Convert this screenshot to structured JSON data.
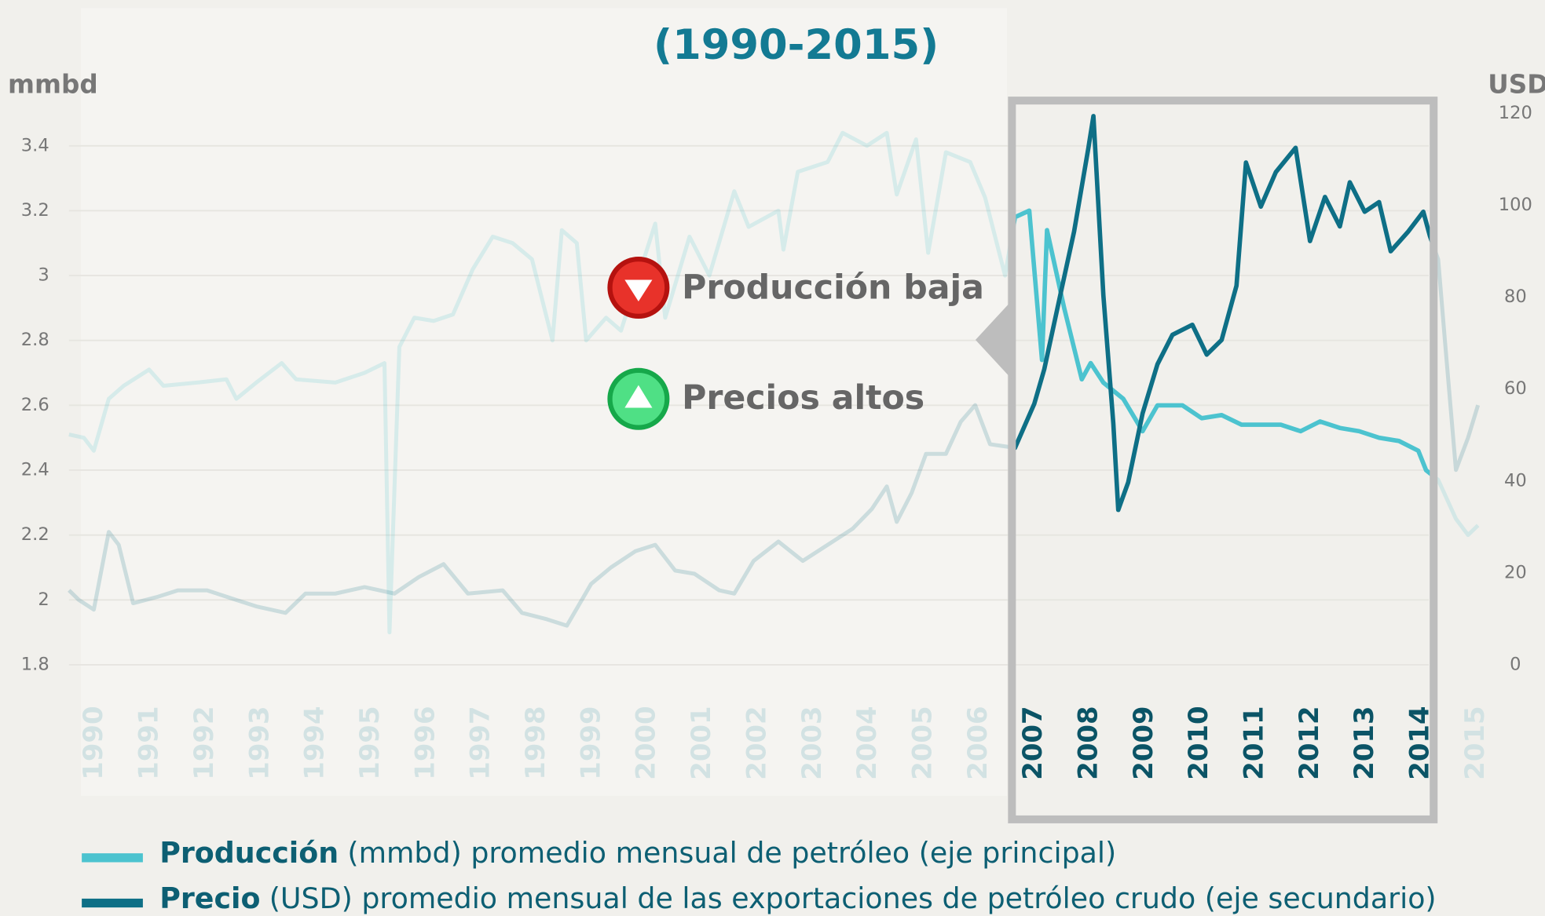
{
  "chart_data": {
    "type": "line",
    "title": "(1990-2015)",
    "y_label": "mmbd",
    "y2_label": "USD",
    "xlim": [
      1990.05,
      2015.55
    ],
    "xticks": [
      {
        "value": 1990.5,
        "label": "1990"
      },
      {
        "value": 1991.5,
        "label": "1991"
      },
      {
        "value": 1992.5,
        "label": "1992"
      },
      {
        "value": 1993.5,
        "label": "1993"
      },
      {
        "value": 1994.5,
        "label": "1994"
      },
      {
        "value": 1995.5,
        "label": "1995"
      },
      {
        "value": 1996.5,
        "label": "1996"
      },
      {
        "value": 1997.5,
        "label": "1997"
      },
      {
        "value": 1998.5,
        "label": "1998"
      },
      {
        "value": 1999.5,
        "label": "1999"
      },
      {
        "value": 2000.5,
        "label": "2000"
      },
      {
        "value": 2001.5,
        "label": "2001"
      },
      {
        "value": 2002.5,
        "label": "2002"
      },
      {
        "value": 2003.5,
        "label": "2003"
      },
      {
        "value": 2004.5,
        "label": "2004"
      },
      {
        "value": 2005.5,
        "label": "2005"
      },
      {
        "value": 2006.5,
        "label": "2006"
      },
      {
        "value": 2007.5,
        "label": "2007"
      },
      {
        "value": 2008.5,
        "label": "2008"
      },
      {
        "value": 2009.5,
        "label": "2009"
      },
      {
        "value": 2010.5,
        "label": "2010"
      },
      {
        "value": 2011.5,
        "label": "2011"
      },
      {
        "value": 2012.5,
        "label": "2012"
      },
      {
        "value": 2013.5,
        "label": "2013"
      },
      {
        "value": 2014.5,
        "label": "2014"
      },
      {
        "value": 2015.5,
        "label": "2015"
      }
    ],
    "ylim": [
      1.8,
      3.5
    ],
    "yticks": [
      1.8,
      2.0,
      2.2,
      2.4,
      2.6,
      2.8,
      3.0,
      3.2,
      3.4
    ],
    "y2lim": [
      0,
      120
    ],
    "y2ticks": [
      0,
      20,
      40,
      60,
      80,
      100,
      120
    ],
    "grid": true,
    "highlight": [
      2007.1,
      2014.7
    ],
    "annotations": [
      "Producción baja",
      "Precios altos"
    ],
    "series": [
      {
        "name": "Producción",
        "legend_text": "(mmbd) promedio mensual de petróleo (eje principal)",
        "color": "#4cc3cf",
        "axis": "y",
        "x": [
          1990.05,
          1990.32,
          1990.5,
          1990.77,
          1991.04,
          1991.5,
          1991.76,
          1992.37,
          1992.9,
          1993.08,
          1993.44,
          1993.9,
          1994.16,
          1994.87,
          1995.4,
          1995.76,
          1995.85,
          1996.03,
          1996.3,
          1996.65,
          1997,
          1997.36,
          1997.72,
          1998.08,
          1998.43,
          1998.8,
          1998.97,
          1999.24,
          1999.41,
          1999.77,
          2000.04,
          2000.66,
          2000.84,
          2001.28,
          2001.64,
          2002.09,
          2002.35,
          2002.89,
          2002.98,
          2003.24,
          2003.78,
          2004.05,
          2004.49,
          2004.85,
          2005.03,
          2005.38,
          2005.6,
          2005.92,
          2006.36,
          2006.63,
          2006.99,
          2007.17,
          2007.43,
          2007.66,
          2007.75,
          2008.06,
          2008.38,
          2008.54,
          2008.77,
          2009.13,
          2009.48,
          2009.75,
          2010.2,
          2010.55,
          2010.91,
          2011.27,
          2011.62,
          2011.98,
          2012.34,
          2012.69,
          2013.05,
          2013.4,
          2013.76,
          2014.12,
          2014.47,
          2014.61,
          2014.83,
          2015.15,
          2015.37,
          2015.55
        ],
        "values": [
          2.51,
          2.5,
          2.46,
          2.62,
          2.66,
          2.71,
          2.66,
          2.67,
          2.68,
          2.62,
          2.67,
          2.73,
          2.68,
          2.67,
          2.7,
          2.73,
          1.9,
          2.78,
          2.87,
          2.86,
          2.88,
          3.02,
          3.12,
          3.1,
          3.05,
          2.8,
          3.14,
          3.1,
          2.8,
          2.87,
          2.83,
          3.16,
          2.87,
          3.12,
          3.0,
          3.26,
          3.15,
          3.2,
          3.08,
          3.32,
          3.35,
          3.44,
          3.4,
          3.44,
          3.25,
          3.42,
          3.07,
          3.38,
          3.35,
          3.24,
          3.0,
          3.18,
          3.2,
          2.74,
          3.14,
          2.9,
          2.68,
          2.73,
          2.67,
          2.62,
          2.52,
          2.6,
          2.6,
          2.56,
          2.57,
          2.54,
          2.54,
          2.54,
          2.52,
          2.55,
          2.53,
          2.52,
          2.5,
          2.49,
          2.46,
          2.4,
          2.37,
          2.25,
          2.2,
          2.23
        ]
      },
      {
        "name": "Precio",
        "legend_text": "(USD) promedio mensual de las exportaciones de petróleo crudo (eje secundario)",
        "color": "#0e6f86",
        "axis": "y2",
        "x": [
          1990.05,
          1990.23,
          1990.5,
          1990.77,
          1990.95,
          1991.21,
          1991.66,
          1992.02,
          1992.55,
          1993.08,
          1993.44,
          1993.97,
          1994.33,
          1994.87,
          1995.4,
          1995.94,
          1996.38,
          1996.83,
          1997.27,
          1997.9,
          1998.25,
          1998.7,
          1999.06,
          1999.5,
          1999.86,
          2000.3,
          2000.66,
          2001.02,
          2001.37,
          2001.82,
          2002.09,
          2002.44,
          2002.89,
          2003.33,
          2003.78,
          2004.23,
          2004.58,
          2004.85,
          2005.03,
          2005.3,
          2005.56,
          2005.92,
          2006.19,
          2006.45,
          2006.72,
          2007.17,
          2007.52,
          2007.7,
          2007.97,
          2008.24,
          2008.5,
          2008.59,
          2008.77,
          2008.95,
          2009.04,
          2009.22,
          2009.48,
          2009.75,
          2010.02,
          2010.38,
          2010.64,
          2010.91,
          2011.18,
          2011.35,
          2011.62,
          2011.89,
          2012.25,
          2012.51,
          2012.78,
          2013.05,
          2013.23,
          2013.5,
          2013.76,
          2013.97,
          2014.29,
          2014.56,
          2014.68,
          2014.83,
          2014.95,
          2015.15,
          2015.37,
          2015.55
        ],
        "values": [
          16.2,
          14.1,
          12,
          28.9,
          26.1,
          13.4,
          14.8,
          16.2,
          16.2,
          14.1,
          12.7,
          11.3,
          15.5,
          15.5,
          16.9,
          15.5,
          19.1,
          21.9,
          15.5,
          16.2,
          11.3,
          9.9,
          8.5,
          17.6,
          21.2,
          24.7,
          26.1,
          20.5,
          19.8,
          16.2,
          15.5,
          22.6,
          26.8,
          22.6,
          26.1,
          29.6,
          33.9,
          38.8,
          31.1,
          37.4,
          45.9,
          45.9,
          52.9,
          56.5,
          48,
          47.2,
          56.8,
          64.3,
          79.3,
          94.3,
          112.5,
          119.4,
          80.4,
          52.5,
          33.7,
          39.7,
          54.7,
          65.4,
          71.8,
          74,
          67.5,
          70.7,
          82.5,
          109.3,
          99.7,
          107.2,
          112.5,
          92.2,
          101.8,
          95.4,
          105,
          98.6,
          100.7,
          90,
          94.3,
          98.6,
          93.3,
          88.2,
          70.6,
          42.4,
          49.4,
          56.5
        ]
      }
    ]
  }
}
